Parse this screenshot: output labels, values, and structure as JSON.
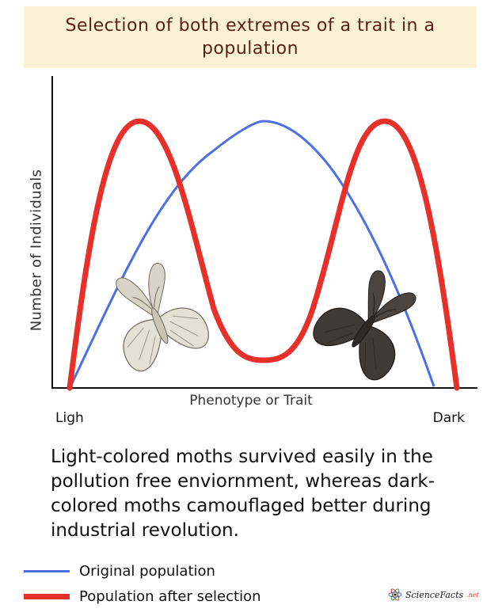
{
  "title": "Selection of both extremes of a trait in a population",
  "axes": {
    "ylabel": "Number of Individuals",
    "xlabel": "Phenotype or Trait",
    "x_left": "Ligh",
    "x_right": "Dark"
  },
  "caption": "Light-colored moths survived easily in the pollution free enviornment, whereas dark-colored moths camouflaged better during industrial revolution.",
  "legend": {
    "original": "Original population",
    "after": "Population after selection"
  },
  "brand": {
    "name": "ScienceFacts",
    "tld": ".net"
  },
  "colors": {
    "original": "#4b6fe8",
    "after": "#e8302a",
    "title_bg": "#fbf2d4",
    "title_text": "#5b1f16"
  },
  "icons": [
    "light-moth-icon",
    "dark-moth-icon",
    "atom-logo-icon"
  ]
}
